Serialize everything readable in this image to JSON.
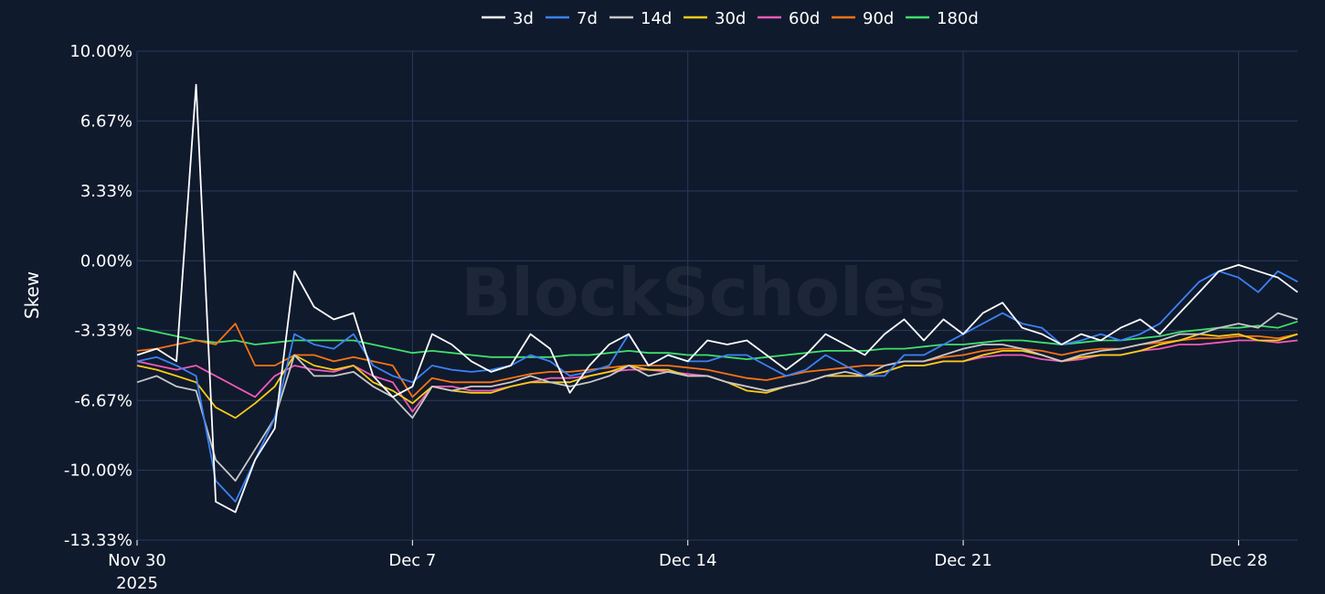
{
  "chart_data": {
    "type": "line",
    "title": "",
    "xlabel": "",
    "ylabel": "Skew",
    "watermark": "BlockScholes",
    "ylim": [
      -13.33,
      10.0
    ],
    "y_ticks": [
      "10.00%",
      "6.67%",
      "3.33%",
      "0.00%",
      "-3.33%",
      "-6.67%",
      "-10.00%",
      "-13.33%"
    ],
    "y_tick_values": [
      10.0,
      6.67,
      3.33,
      0.0,
      -3.33,
      -6.67,
      -10.0,
      -13.33
    ],
    "x_range": [
      "2025-11-30T00:00",
      "2025-12-29T12:00"
    ],
    "x_ticks": [
      {
        "date": "2025-11-30",
        "label": "Nov 30",
        "sublabel": "2025"
      },
      {
        "date": "2025-12-07",
        "label": "Dec 7",
        "sublabel": ""
      },
      {
        "date": "2025-12-14",
        "label": "Dec 14",
        "sublabel": ""
      },
      {
        "date": "2025-12-21",
        "label": "Dec 21",
        "sublabel": ""
      },
      {
        "date": "2025-12-28",
        "label": "Dec 28",
        "sublabel": ""
      }
    ],
    "grid": true,
    "legend_position": "top-center",
    "x": [
      "2025-11-30",
      "2025-11-30T12:00",
      "2025-12-01",
      "2025-12-01T12:00",
      "2025-12-02",
      "2025-12-02T12:00",
      "2025-12-03",
      "2025-12-03T12:00",
      "2025-12-04",
      "2025-12-04T12:00",
      "2025-12-05",
      "2025-12-05T12:00",
      "2025-12-06",
      "2025-12-06T12:00",
      "2025-12-07",
      "2025-12-07T12:00",
      "2025-12-08",
      "2025-12-08T12:00",
      "2025-12-09",
      "2025-12-09T12:00",
      "2025-12-10",
      "2025-12-10T12:00",
      "2025-12-11",
      "2025-12-11T12:00",
      "2025-12-12",
      "2025-12-12T12:00",
      "2025-12-13",
      "2025-12-13T12:00",
      "2025-12-14",
      "2025-12-14T12:00",
      "2025-12-15",
      "2025-12-15T12:00",
      "2025-12-16",
      "2025-12-16T12:00",
      "2025-12-17",
      "2025-12-17T12:00",
      "2025-12-18",
      "2025-12-18T12:00",
      "2025-12-19",
      "2025-12-19T12:00",
      "2025-12-20",
      "2025-12-20T12:00",
      "2025-12-21",
      "2025-12-21T12:00",
      "2025-12-22",
      "2025-12-22T12:00",
      "2025-12-23",
      "2025-12-23T12:00",
      "2025-12-24",
      "2025-12-24T12:00",
      "2025-12-25",
      "2025-12-25T12:00",
      "2025-12-26",
      "2025-12-26T12:00",
      "2025-12-27",
      "2025-12-27T12:00",
      "2025-12-28",
      "2025-12-28T12:00",
      "2025-12-29",
      "2025-12-29T12:00"
    ],
    "series": [
      {
        "name": "3d",
        "color": "#ffffff",
        "values": [
          -4.5,
          -4.2,
          -4.8,
          8.4,
          -11.5,
          -12.0,
          -9.5,
          -8.0,
          -0.5,
          -2.2,
          -2.8,
          -2.5,
          -5.5,
          -6.5,
          -6.0,
          -3.5,
          -4.0,
          -4.8,
          -5.3,
          -5.0,
          -3.5,
          -4.2,
          -6.3,
          -5.0,
          -4.0,
          -3.5,
          -5.0,
          -4.5,
          -4.8,
          -3.8,
          -4.0,
          -3.8,
          -4.5,
          -5.2,
          -4.5,
          -3.5,
          -4.0,
          -4.5,
          -3.5,
          -2.8,
          -3.8,
          -2.8,
          -3.5,
          -2.5,
          -2.0,
          -3.2,
          -3.5,
          -4.0,
          -3.5,
          -3.8,
          -3.2,
          -2.8,
          -3.5,
          -2.5,
          -1.5,
          -0.5,
          -0.2,
          -0.5,
          -0.8,
          -1.5
        ]
      },
      {
        "name": "7d",
        "color": "#3b82f6",
        "values": [
          -4.8,
          -4.6,
          -5.0,
          -5.5,
          -10.5,
          -11.5,
          -9.5,
          -7.5,
          -3.5,
          -4.0,
          -4.2,
          -3.5,
          -5.0,
          -5.5,
          -5.8,
          -5.0,
          -5.2,
          -5.3,
          -5.2,
          -5.0,
          -4.5,
          -4.8,
          -5.5,
          -5.3,
          -5.0,
          -3.5,
          -5.0,
          -4.5,
          -4.8,
          -4.8,
          -4.5,
          -4.5,
          -5.0,
          -5.5,
          -5.2,
          -4.5,
          -5.0,
          -5.5,
          -5.5,
          -4.5,
          -4.5,
          -4.0,
          -3.5,
          -3.0,
          -2.5,
          -3.0,
          -3.2,
          -4.0,
          -3.8,
          -3.5,
          -3.8,
          -3.5,
          -3.0,
          -2.0,
          -1.0,
          -0.5,
          -0.8,
          -1.5,
          -0.5,
          -1.0
        ]
      },
      {
        "name": "14d",
        "color": "#c8c8c8",
        "values": [
          -5.8,
          -5.5,
          -6.0,
          -6.2,
          -9.5,
          -10.5,
          -9.0,
          -7.5,
          -4.5,
          -5.5,
          -5.5,
          -5.3,
          -6.0,
          -6.5,
          -7.5,
          -6.0,
          -6.2,
          -6.0,
          -6.0,
          -5.8,
          -5.5,
          -5.8,
          -6.0,
          -5.8,
          -5.5,
          -5.0,
          -5.5,
          -5.3,
          -5.5,
          -5.5,
          -5.8,
          -6.0,
          -6.2,
          -6.0,
          -5.8,
          -5.5,
          -5.3,
          -5.5,
          -5.0,
          -4.8,
          -4.8,
          -4.5,
          -4.2,
          -4.0,
          -4.0,
          -4.2,
          -4.5,
          -4.8,
          -4.5,
          -4.3,
          -4.2,
          -4.0,
          -3.8,
          -3.5,
          -3.5,
          -3.2,
          -3.0,
          -3.2,
          -2.5,
          -2.8
        ]
      },
      {
        "name": "30d",
        "color": "#facc15",
        "values": [
          -5.0,
          -5.2,
          -5.5,
          -5.8,
          -7.0,
          -7.5,
          -6.8,
          -6.0,
          -4.5,
          -5.0,
          -5.2,
          -5.0,
          -5.8,
          -6.2,
          -6.8,
          -6.0,
          -6.2,
          -6.3,
          -6.3,
          -6.0,
          -5.8,
          -5.8,
          -5.8,
          -5.5,
          -5.3,
          -5.0,
          -5.2,
          -5.2,
          -5.5,
          -5.5,
          -5.8,
          -6.2,
          -6.3,
          -6.0,
          -5.8,
          -5.5,
          -5.5,
          -5.5,
          -5.3,
          -5.0,
          -5.0,
          -4.8,
          -4.8,
          -4.5,
          -4.3,
          -4.3,
          -4.5,
          -4.8,
          -4.6,
          -4.5,
          -4.5,
          -4.3,
          -4.0,
          -3.8,
          -3.5,
          -3.6,
          -3.5,
          -3.8,
          -3.8,
          -3.5
        ]
      },
      {
        "name": "60d",
        "color": "#f15bb5",
        "values": [
          -4.8,
          -5.0,
          -5.2,
          -5.0,
          -5.5,
          -6.0,
          -6.5,
          -5.5,
          -5.0,
          -5.2,
          -5.3,
          -5.0,
          -5.5,
          -5.8,
          -7.2,
          -6.0,
          -6.0,
          -6.2,
          -6.2,
          -6.0,
          -5.8,
          -5.6,
          -5.6,
          -5.5,
          -5.3,
          -5.2,
          -5.2,
          -5.3,
          -5.4,
          -5.5,
          -5.8,
          -6.0,
          -6.2,
          -6.0,
          -5.8,
          -5.5,
          -5.5,
          -5.5,
          -5.3,
          -5.0,
          -5.0,
          -4.8,
          -4.8,
          -4.6,
          -4.5,
          -4.5,
          -4.7,
          -4.8,
          -4.7,
          -4.5,
          -4.5,
          -4.3,
          -4.2,
          -4.0,
          -4.0,
          -3.9,
          -3.8,
          -3.8,
          -3.9,
          -3.8
        ]
      },
      {
        "name": "90d",
        "color": "#f97316",
        "values": [
          -4.3,
          -4.2,
          -4.0,
          -3.8,
          -4.0,
          -3.0,
          -5.0,
          -5.0,
          -4.5,
          -4.5,
          -4.8,
          -4.6,
          -4.8,
          -5.0,
          -6.5,
          -5.6,
          -5.8,
          -5.8,
          -5.8,
          -5.6,
          -5.4,
          -5.3,
          -5.3,
          -5.2,
          -5.1,
          -5.0,
          -5.0,
          -5.0,
          -5.1,
          -5.2,
          -5.4,
          -5.6,
          -5.7,
          -5.5,
          -5.3,
          -5.2,
          -5.1,
          -5.0,
          -5.0,
          -4.8,
          -4.8,
          -4.6,
          -4.5,
          -4.3,
          -4.2,
          -4.2,
          -4.3,
          -4.5,
          -4.3,
          -4.2,
          -4.2,
          -4.0,
          -3.9,
          -3.8,
          -3.7,
          -3.7,
          -3.6,
          -3.6,
          -3.7,
          -3.5
        ]
      },
      {
        "name": "180d",
        "color": "#3fe06a",
        "values": [
          -3.2,
          -3.4,
          -3.6,
          -3.8,
          -3.9,
          -3.8,
          -4.0,
          -3.9,
          -3.8,
          -3.8,
          -3.8,
          -3.8,
          -4.0,
          -4.2,
          -4.4,
          -4.3,
          -4.4,
          -4.5,
          -4.6,
          -4.6,
          -4.6,
          -4.6,
          -4.5,
          -4.5,
          -4.4,
          -4.3,
          -4.4,
          -4.4,
          -4.5,
          -4.5,
          -4.6,
          -4.7,
          -4.6,
          -4.5,
          -4.4,
          -4.3,
          -4.3,
          -4.3,
          -4.2,
          -4.2,
          -4.1,
          -4.0,
          -4.0,
          -3.9,
          -3.8,
          -3.8,
          -3.9,
          -4.0,
          -3.9,
          -3.8,
          -3.8,
          -3.7,
          -3.6,
          -3.4,
          -3.3,
          -3.2,
          -3.2,
          -3.1,
          -3.2,
          -2.9
        ]
      }
    ]
  }
}
